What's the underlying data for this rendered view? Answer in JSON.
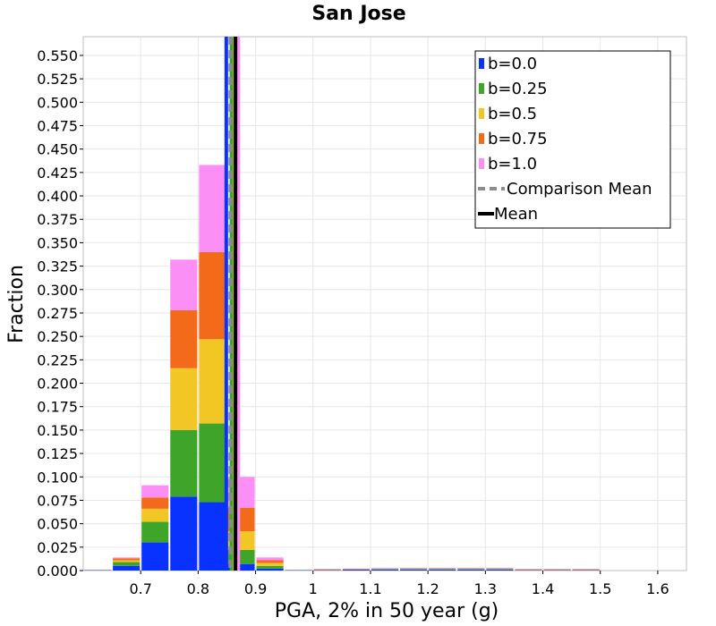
{
  "chart_data": {
    "type": "bar",
    "stacked": true,
    "title": "San Jose",
    "xlabel": "PGA, 2% in 50 year (g)",
    "ylabel": "Fraction",
    "xlim": [
      0.6,
      1.65
    ],
    "ylim": [
      0.0,
      0.57
    ],
    "x_ticks": [
      "0.7",
      "0.8",
      "0.9",
      "1",
      "1.1",
      "1.2",
      "1.3",
      "1.4",
      "1.5",
      "1.6"
    ],
    "y_ticks": [
      "0.000",
      "0.025",
      "0.050",
      "0.075",
      "0.100",
      "0.125",
      "0.150",
      "0.175",
      "0.200",
      "0.225",
      "0.250",
      "0.275",
      "0.300",
      "0.325",
      "0.350",
      "0.375",
      "0.400",
      "0.425",
      "0.450",
      "0.475",
      "0.500",
      "0.525",
      "0.550"
    ],
    "grid": true,
    "legend_position": "top-right",
    "bin_width": 0.05,
    "bin_centers": [
      0.625,
      0.675,
      0.725,
      0.775,
      0.825,
      0.875,
      0.925,
      0.975,
      1.025,
      1.075,
      1.125,
      1.175,
      1.225,
      1.275,
      1.325,
      1.375,
      1.425,
      1.475,
      1.525,
      1.575,
      1.625
    ],
    "series": [
      {
        "name": "b=0.0",
        "color": "#0a32ff",
        "values": [
          0.0005,
          0.005,
          0.03,
          0.079,
          0.073,
          0.007,
          0.002,
          0.0005,
          0.0005,
          0.001,
          0.001,
          0.001,
          0.001,
          0.001,
          0.001,
          0.0005,
          0.0005,
          0.0005,
          0.0,
          0.0,
          0.0
        ]
      },
      {
        "name": "b=0.25",
        "color": "#3fa52a",
        "values": [
          0.0,
          0.004,
          0.022,
          0.071,
          0.084,
          0.015,
          0.003,
          0.0,
          0.0003,
          0.0003,
          0.0005,
          0.0005,
          0.0005,
          0.0005,
          0.0005,
          0.0003,
          0.0003,
          0.0003,
          0.0,
          0.0,
          0.0
        ]
      },
      {
        "name": "b=0.5",
        "color": "#f2c624",
        "values": [
          0.0,
          0.002,
          0.014,
          0.066,
          0.09,
          0.02,
          0.003,
          0.0,
          0.0003,
          0.0003,
          0.0005,
          0.0005,
          0.0005,
          0.0005,
          0.0005,
          0.0003,
          0.0003,
          0.0003,
          0.0,
          0.0,
          0.0
        ]
      },
      {
        "name": "b=0.75",
        "color": "#f26a1a",
        "values": [
          0.0,
          0.002,
          0.012,
          0.062,
          0.093,
          0.025,
          0.003,
          0.0,
          0.0003,
          0.0003,
          0.0003,
          0.0005,
          0.0005,
          0.0005,
          0.0005,
          0.0003,
          0.0003,
          0.0003,
          0.0,
          0.0,
          0.0
        ]
      },
      {
        "name": "b=1.0",
        "color": "#fb8ff5",
        "values": [
          0.0,
          0.001,
          0.013,
          0.054,
          0.093,
          0.033,
          0.003,
          0.0,
          0.0003,
          0.0003,
          0.0003,
          0.0003,
          0.0003,
          0.0003,
          0.0003,
          0.0003,
          0.0003,
          0.0003,
          0.0,
          0.0,
          0.0
        ]
      }
    ],
    "mean_lines": [
      {
        "series": "b=0.0",
        "x": 0.849,
        "color": "#0a32ff"
      },
      {
        "series": "b=0.25",
        "x": 0.858,
        "color": "#3fa52a"
      },
      {
        "series": "b=0.5",
        "x": 0.864,
        "color": "#f2c624"
      },
      {
        "series": "b=0.75",
        "x": 0.867,
        "color": "#f26a1a"
      },
      {
        "series": "b=1.0",
        "x": 0.87,
        "color": "#fb8ff5"
      }
    ],
    "comparison_mean": {
      "x": 0.856,
      "color": "#8c8c8c",
      "style": "dashed"
    },
    "overall_mean": {
      "x": 0.865,
      "color": "#000000"
    },
    "legend": [
      {
        "label": "b=0.0",
        "kind": "swatch",
        "color": "#0a32ff"
      },
      {
        "label": "b=0.25",
        "kind": "swatch",
        "color": "#3fa52a"
      },
      {
        "label": "b=0.5",
        "kind": "swatch",
        "color": "#f2c624"
      },
      {
        "label": "b=0.75",
        "kind": "swatch",
        "color": "#f26a1a"
      },
      {
        "label": "b=1.0",
        "kind": "swatch",
        "color": "#fb8ff5"
      },
      {
        "label": "Comparison Mean",
        "kind": "dashed-line",
        "color": "#8c8c8c"
      },
      {
        "label": "Mean",
        "kind": "line",
        "color": "#000000"
      }
    ]
  }
}
